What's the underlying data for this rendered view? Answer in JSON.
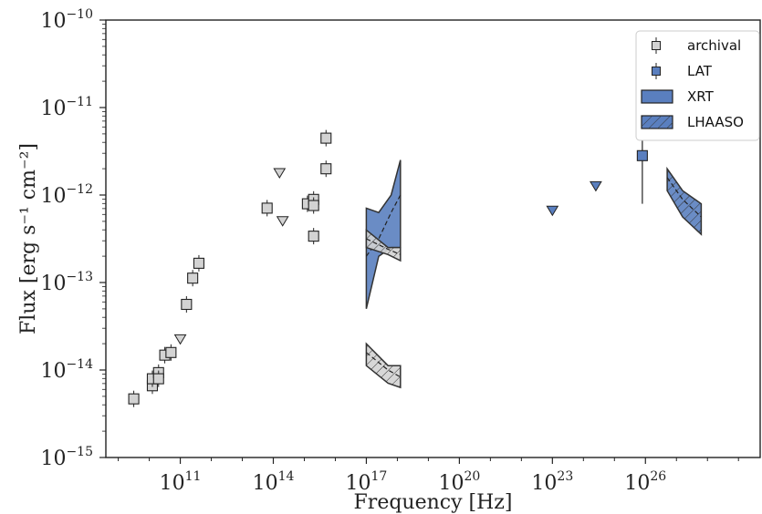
{
  "chart_data": {
    "type": "scatter",
    "xlabel": "Frequency [Hz]",
    "ylabel": "Flux [erg s⁻¹ cm⁻²]",
    "x_scale": "log",
    "y_scale": "log",
    "xlim_log10": [
      8.6,
      29.7
    ],
    "ylim_log10": [
      -15,
      -10
    ],
    "x_ticks_log10": [
      11,
      14,
      17,
      20,
      23,
      26
    ],
    "y_ticks_log10": [
      -15,
      -14,
      -13,
      -12,
      -11,
      -10
    ],
    "tick_base": "10",
    "grid": false,
    "legend_position": "top-right",
    "legend": [
      "archival",
      "LAT",
      "XRT",
      "LHAASO"
    ],
    "colors": {
      "archival": "#d3d3d3",
      "blue": "#5a7fbf",
      "edge": "#333333"
    },
    "series": [
      {
        "name": "archival",
        "marker": "square",
        "points_log10": [
          [
            9.5,
            -14.33
          ],
          [
            10.1,
            -14.18
          ],
          [
            10.1,
            -14.1
          ],
          [
            10.3,
            -14.03
          ],
          [
            10.3,
            -14.1
          ],
          [
            10.5,
            -13.83
          ],
          [
            10.7,
            -13.8
          ],
          [
            11.2,
            -13.25
          ],
          [
            11.4,
            -12.95
          ],
          [
            11.6,
            -12.78
          ],
          [
            13.8,
            -12.15
          ],
          [
            15.1,
            -12.1
          ],
          [
            15.3,
            -12.05
          ],
          [
            15.3,
            -12.12
          ],
          [
            15.3,
            -12.47
          ],
          [
            15.7,
            -11.35
          ],
          [
            15.7,
            -11.7
          ]
        ]
      },
      {
        "name": "archival upper limits",
        "marker": "triangle-down",
        "points_log10": [
          [
            11.0,
            -13.65
          ],
          [
            14.2,
            -11.75
          ],
          [
            14.3,
            -12.3
          ]
        ]
      },
      {
        "name": "LAT",
        "marker": "square",
        "points_log10": [
          [
            25.9,
            -11.55
          ]
        ],
        "yerr_log10": [
          [
            -12.1,
            -11.0
          ]
        ]
      },
      {
        "name": "LAT upper limits",
        "marker": "triangle-down",
        "points_log10": [
          [
            23.0,
            -12.18
          ],
          [
            24.4,
            -11.9
          ]
        ]
      },
      {
        "name": "XRT",
        "type": "band",
        "x_log10": [
          17.0,
          17.4,
          17.8,
          18.1
        ],
        "upper_log10": [
          -12.15,
          -12.2,
          -12.0,
          -11.6
        ],
        "lower_log10": [
          -13.3,
          -12.7,
          -12.6,
          -12.6
        ],
        "line_log10": [
          -12.7,
          -12.5,
          -12.2,
          -12.0
        ]
      },
      {
        "name": "LHAASO",
        "type": "band",
        "x_log10": [
          26.7,
          27.2,
          27.8
        ],
        "upper_log10": [
          -11.7,
          -11.95,
          -12.1
        ],
        "lower_log10": [
          -11.95,
          -12.25,
          -12.45
        ],
        "line_log10": [
          -11.8,
          -12.05,
          -12.25
        ]
      },
      {
        "name": "LHAASO-style grey band A",
        "type": "band",
        "color": "#d3d3d3",
        "x_log10": [
          17.0,
          17.7,
          18.1
        ],
        "upper_log10": [
          -12.4,
          -12.6,
          -12.6
        ],
        "lower_log10": [
          -12.6,
          -12.68,
          -12.75
        ],
        "line_log10": [
          -12.5,
          -12.62,
          -12.68
        ]
      },
      {
        "name": "LHAASO-style grey band B",
        "type": "band",
        "color": "#d3d3d3",
        "x_log10": [
          17.0,
          17.7,
          18.1
        ],
        "upper_log10": [
          -13.7,
          -13.95,
          -13.95
        ],
        "lower_log10": [
          -13.95,
          -14.15,
          -14.2
        ],
        "line_log10": [
          -13.8,
          -14.0,
          -14.08
        ]
      }
    ]
  }
}
